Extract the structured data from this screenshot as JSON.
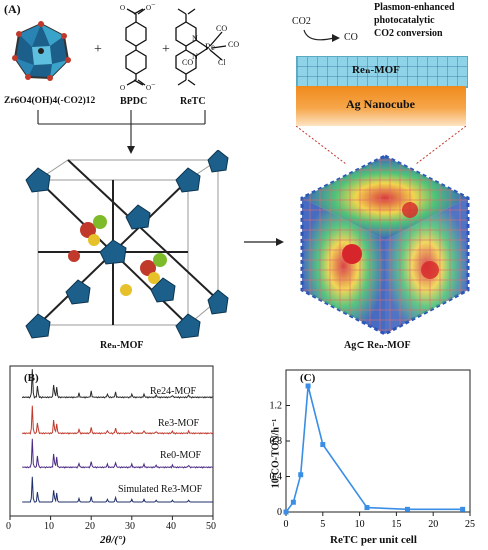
{
  "panel_a": {
    "tag": "(A)",
    "reagents": {
      "cluster": "Zr6O4(OH)4(-CO2)12",
      "linker": "BPDC",
      "complex": "ReTC",
      "plus": "+"
    },
    "retc_labels": {
      "re": "Re",
      "n1": "N",
      "n2": "N",
      "co1": "CO",
      "co2": "CO",
      "co3": "CO",
      "cl": "Cl"
    },
    "carboxylate_minus": "−",
    "mof_caption": "Reₙ-MOF",
    "right": {
      "co2": "CO2",
      "co": "CO",
      "title_line1": "Plasmon-enhanced",
      "title_line2": "photocatalytic",
      "title_line3": "CO2 conversion",
      "mof_layer": "Reₙ-MOF",
      "nanocube": "Ag Nanocube",
      "composite_caption": "Ag⊂ Reₙ-MOF"
    }
  },
  "panel_b": {
    "tag": "(B)",
    "traces": [
      {
        "label": "Re24-MOF",
        "color": "#2b2b2b"
      },
      {
        "label": "Re3-MOF",
        "color": "#c0392b"
      },
      {
        "label": "Re0-MOF",
        "color": "#4b2a85"
      },
      {
        "label": "Simulated Re3-MOF",
        "color": "#1f2f6b"
      }
    ],
    "xlabel": "2θ/(°)",
    "xticks": [
      "0",
      "10",
      "20",
      "30",
      "40",
      "50"
    ]
  },
  "chart_data": {
    "type": "line",
    "panel_tag": "(C)",
    "xlabel": "ReTC per unit cell",
    "ylabel": "10³CO-TON/h⁻¹",
    "xlim": [
      0,
      25
    ],
    "ylim": [
      0,
      1.6
    ],
    "xticks": [
      "0",
      "5",
      "10",
      "15",
      "20",
      "25"
    ],
    "yticks": [
      "0",
      "0.4",
      "0.8",
      "1.2"
    ],
    "color": "#3a8ee6",
    "x": [
      0,
      1,
      2,
      3,
      5,
      11,
      16.5,
      24
    ],
    "values": [
      0,
      0.11,
      0.42,
      1.42,
      0.76,
      0.05,
      0.03,
      0.03
    ]
  }
}
